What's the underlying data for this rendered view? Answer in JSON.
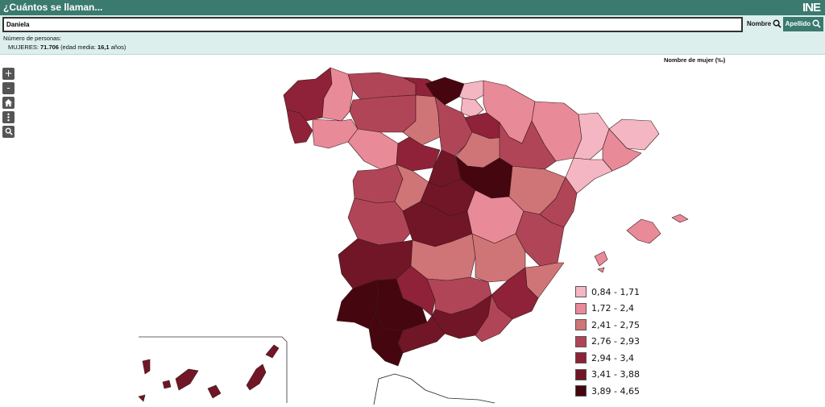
{
  "header": {
    "title": "¿Cuántos se llaman...",
    "logo": "INE"
  },
  "search": {
    "value": "Daniela",
    "nombre_label": "Nombre",
    "apellido_label": "Apellido"
  },
  "info": {
    "line1": "Número de personas:",
    "gender_label": "MUJERES:",
    "count": "71.706",
    "age_prefix": "(edad media:",
    "age": "16,1",
    "age_suffix": "años)"
  },
  "map": {
    "title": "Nombre de mujer (‰)",
    "controls": {
      "zoom_in": "+",
      "zoom_out": "-"
    },
    "legend": [
      {
        "label": "0,84 - 1,71",
        "color": "#f4b6c2"
      },
      {
        "label": "1,72 - 2,4",
        "color": "#e98a99"
      },
      {
        "label": "2,41 - 2,75",
        "color": "#cf7577"
      },
      {
        "label": "2,76 - 2,93",
        "color": "#b14558"
      },
      {
        "label": "2,94 - 3,4",
        "color": "#8f2238"
      },
      {
        "label": "3,41 - 3,88",
        "color": "#711626"
      },
      {
        "label": "3,89 - 4,65",
        "color": "#45060f"
      }
    ]
  }
}
